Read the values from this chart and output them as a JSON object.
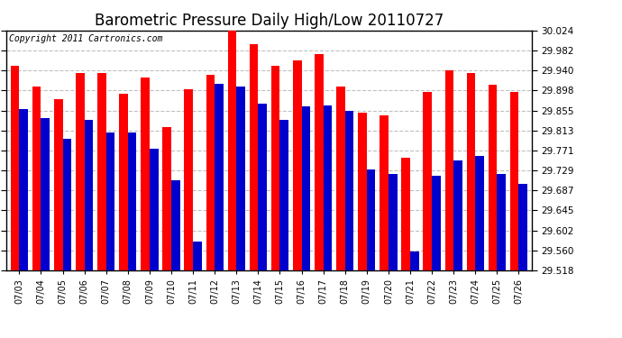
{
  "title": "Barometric Pressure Daily High/Low 20110727",
  "copyright": "Copyright 2011 Cartronics.com",
  "dates": [
    "07/03",
    "07/04",
    "07/05",
    "07/06",
    "07/07",
    "07/08",
    "07/09",
    "07/10",
    "07/11",
    "07/12",
    "07/13",
    "07/14",
    "07/15",
    "07/16",
    "07/17",
    "07/18",
    "07/19",
    "07/20",
    "07/21",
    "07/22",
    "07/23",
    "07/24",
    "07/25",
    "07/26"
  ],
  "highs": [
    29.95,
    29.905,
    29.88,
    29.935,
    29.935,
    29.89,
    29.925,
    29.82,
    29.9,
    29.93,
    30.024,
    29.995,
    29.95,
    29.96,
    29.975,
    29.905,
    29.85,
    29.845,
    29.755,
    29.895,
    29.94,
    29.935,
    29.91,
    29.895
  ],
  "lows": [
    29.858,
    29.84,
    29.795,
    29.835,
    29.808,
    29.808,
    29.775,
    29.708,
    29.578,
    29.912,
    29.905,
    29.87,
    29.835,
    29.863,
    29.865,
    29.855,
    29.73,
    29.722,
    29.558,
    29.718,
    29.75,
    29.76,
    29.722,
    29.7
  ],
  "high_color": "#ff0000",
  "low_color": "#0000cc",
  "bg_color": "#ffffff",
  "grid_color": "#c0c0c0",
  "ylim_min": 29.518,
  "ylim_max": 30.024,
  "yticks": [
    29.518,
    29.56,
    29.602,
    29.645,
    29.687,
    29.729,
    29.771,
    29.813,
    29.855,
    29.898,
    29.94,
    29.982,
    30.024
  ],
  "title_fontsize": 12,
  "copyright_fontsize": 7
}
